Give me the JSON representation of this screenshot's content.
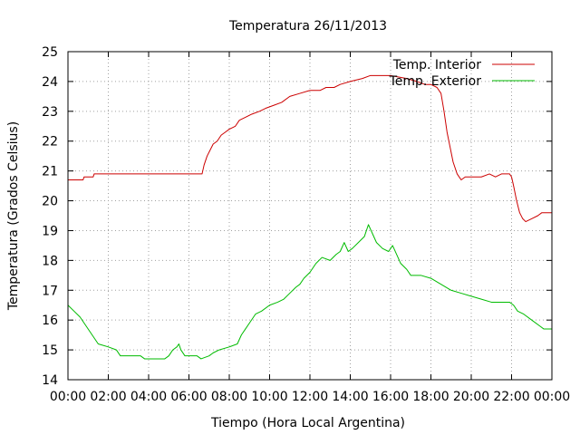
{
  "chart_data": {
    "type": "line",
    "title": "Temperatura 26/11/2013",
    "xlabel": "Tiempo (Hora Local Argentina)",
    "ylabel": "Temperatura (Grados Celsius)",
    "xlim": [
      0,
      24
    ],
    "ylim": [
      14,
      25
    ],
    "x_ticks": [
      "00:00",
      "02:00",
      "04:00",
      "06:00",
      "08:00",
      "10:00",
      "12:00",
      "14:00",
      "16:00",
      "18:00",
      "20:00",
      "22:00",
      "00:00"
    ],
    "y_ticks": [
      "14",
      "15",
      "16",
      "17",
      "18",
      "19",
      "20",
      "21",
      "22",
      "23",
      "24",
      "25"
    ],
    "grid": true,
    "legend_position": "top-right",
    "series": [
      {
        "name": "Temp. Interior",
        "color": "#cc0000",
        "points": [
          [
            0,
            20.7
          ],
          [
            0.75,
            20.7
          ],
          [
            0.8,
            20.8
          ],
          [
            1.25,
            20.8
          ],
          [
            1.3,
            20.9
          ],
          [
            2,
            20.9
          ],
          [
            4,
            20.9
          ],
          [
            6,
            20.9
          ],
          [
            6.65,
            20.9
          ],
          [
            6.75,
            21.2
          ],
          [
            6.9,
            21.5
          ],
          [
            7.05,
            21.7
          ],
          [
            7.2,
            21.9
          ],
          [
            7.4,
            22.0
          ],
          [
            7.6,
            22.2
          ],
          [
            7.8,
            22.3
          ],
          [
            8.0,
            22.4
          ],
          [
            8.3,
            22.5
          ],
          [
            8.5,
            22.7
          ],
          [
            8.8,
            22.8
          ],
          [
            9.1,
            22.9
          ],
          [
            9.5,
            23.0
          ],
          [
            9.8,
            23.1
          ],
          [
            10.2,
            23.2
          ],
          [
            10.6,
            23.3
          ],
          [
            11.0,
            23.5
          ],
          [
            11.5,
            23.6
          ],
          [
            12.0,
            23.7
          ],
          [
            12.5,
            23.7
          ],
          [
            12.8,
            23.8
          ],
          [
            13.2,
            23.8
          ],
          [
            13.5,
            23.9
          ],
          [
            14.0,
            24.0
          ],
          [
            14.6,
            24.1
          ],
          [
            15.0,
            24.2
          ],
          [
            15.5,
            24.2
          ],
          [
            16.0,
            24.2
          ],
          [
            16.8,
            24.1
          ],
          [
            17.3,
            24.0
          ],
          [
            17.7,
            23.9
          ],
          [
            18.0,
            23.9
          ],
          [
            18.3,
            23.8
          ],
          [
            18.5,
            23.6
          ],
          [
            18.65,
            23.0
          ],
          [
            18.8,
            22.3
          ],
          [
            18.95,
            21.8
          ],
          [
            19.1,
            21.3
          ],
          [
            19.3,
            20.9
          ],
          [
            19.5,
            20.7
          ],
          [
            19.7,
            20.8
          ],
          [
            20.0,
            20.8
          ],
          [
            20.5,
            20.8
          ],
          [
            20.9,
            20.9
          ],
          [
            21.2,
            20.8
          ],
          [
            21.5,
            20.9
          ],
          [
            21.9,
            20.9
          ],
          [
            22.0,
            20.8
          ],
          [
            22.1,
            20.5
          ],
          [
            22.25,
            20.0
          ],
          [
            22.4,
            19.6
          ],
          [
            22.55,
            19.4
          ],
          [
            22.7,
            19.3
          ],
          [
            23.0,
            19.4
          ],
          [
            23.3,
            19.5
          ],
          [
            23.5,
            19.6
          ],
          [
            23.8,
            19.6
          ],
          [
            24.0,
            19.6
          ]
        ]
      },
      {
        "name": "Temp. Exterior",
        "color": "#00bb00",
        "points": [
          [
            0,
            16.5
          ],
          [
            0.3,
            16.3
          ],
          [
            0.6,
            16.1
          ],
          [
            0.9,
            15.8
          ],
          [
            1.2,
            15.5
          ],
          [
            1.5,
            15.2
          ],
          [
            2.0,
            15.1
          ],
          [
            2.4,
            15.0
          ],
          [
            2.6,
            14.8
          ],
          [
            3.2,
            14.8
          ],
          [
            3.6,
            14.8
          ],
          [
            3.8,
            14.7
          ],
          [
            4.5,
            14.7
          ],
          [
            4.8,
            14.7
          ],
          [
            5.0,
            14.8
          ],
          [
            5.2,
            15.0
          ],
          [
            5.4,
            15.1
          ],
          [
            5.5,
            15.2
          ],
          [
            5.6,
            15.0
          ],
          [
            5.8,
            14.8
          ],
          [
            6.4,
            14.8
          ],
          [
            6.6,
            14.7
          ],
          [
            7.0,
            14.8
          ],
          [
            7.2,
            14.9
          ],
          [
            7.5,
            15.0
          ],
          [
            8.0,
            15.1
          ],
          [
            8.4,
            15.2
          ],
          [
            8.6,
            15.5
          ],
          [
            8.8,
            15.7
          ],
          [
            9.0,
            15.9
          ],
          [
            9.3,
            16.2
          ],
          [
            9.6,
            16.3
          ],
          [
            10.0,
            16.5
          ],
          [
            10.4,
            16.6
          ],
          [
            10.7,
            16.7
          ],
          [
            11.0,
            16.9
          ],
          [
            11.3,
            17.1
          ],
          [
            11.5,
            17.2
          ],
          [
            11.7,
            17.4
          ],
          [
            12.0,
            17.6
          ],
          [
            12.3,
            17.9
          ],
          [
            12.6,
            18.1
          ],
          [
            13.0,
            18.0
          ],
          [
            13.3,
            18.2
          ],
          [
            13.5,
            18.3
          ],
          [
            13.7,
            18.6
          ],
          [
            13.9,
            18.3
          ],
          [
            14.1,
            18.4
          ],
          [
            14.4,
            18.6
          ],
          [
            14.7,
            18.8
          ],
          [
            14.9,
            19.2
          ],
          [
            15.1,
            18.9
          ],
          [
            15.3,
            18.6
          ],
          [
            15.6,
            18.4
          ],
          [
            15.9,
            18.3
          ],
          [
            16.1,
            18.5
          ],
          [
            16.3,
            18.2
          ],
          [
            16.5,
            17.9
          ],
          [
            16.8,
            17.7
          ],
          [
            17.0,
            17.5
          ],
          [
            17.5,
            17.5
          ],
          [
            18.0,
            17.4
          ],
          [
            18.5,
            17.2
          ],
          [
            19.0,
            17.0
          ],
          [
            19.5,
            16.9
          ],
          [
            20.0,
            16.8
          ],
          [
            20.5,
            16.7
          ],
          [
            21.0,
            16.6
          ],
          [
            21.5,
            16.6
          ],
          [
            21.9,
            16.6
          ],
          [
            22.1,
            16.5
          ],
          [
            22.3,
            16.3
          ],
          [
            22.6,
            16.2
          ],
          [
            23.0,
            16.0
          ],
          [
            23.4,
            15.8
          ],
          [
            23.6,
            15.7
          ],
          [
            24.0,
            15.7
          ]
        ]
      }
    ]
  }
}
